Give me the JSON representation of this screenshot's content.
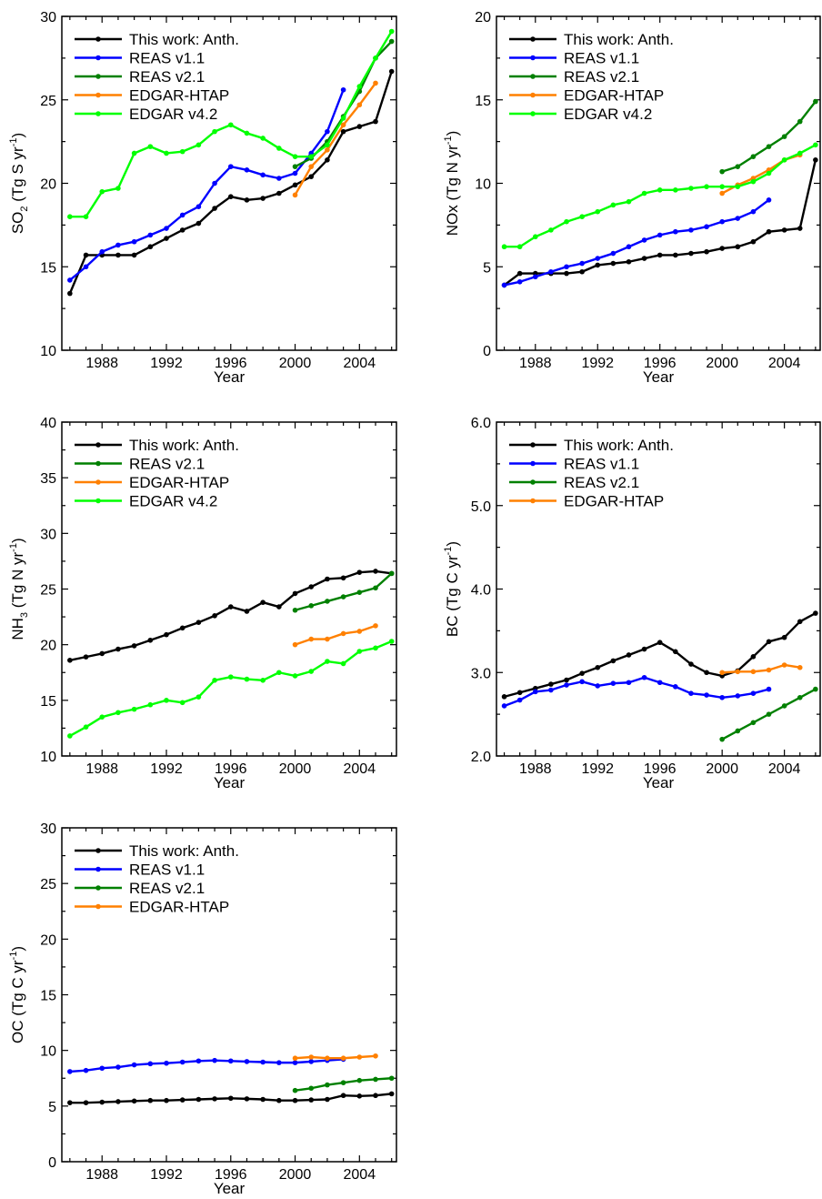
{
  "chart_data": [
    {
      "type": "line",
      "xlabel": "Year",
      "ylabel": "SO₂ (Tg S yr⁻¹)",
      "ylabel_parts": {
        "main": "SO",
        "sub": "2",
        "unit": " (Tg S yr",
        "sup": "-1",
        "close": ")"
      },
      "xlim": [
        1985.5,
        2006.3
      ],
      "ylim": [
        10,
        30
      ],
      "xticks": [
        1988,
        1992,
        1996,
        2000,
        2004
      ],
      "yticks": [
        10,
        15,
        20,
        25,
        30
      ],
      "ytick_labels": [
        "10",
        "15",
        "20",
        "25",
        "30"
      ],
      "legend_position": "top-left",
      "series": [
        {
          "name": "This work: Anth.",
          "color": "#000000",
          "x": [
            1986,
            1987,
            1988,
            1989,
            1990,
            1991,
            1992,
            1993,
            1994,
            1995,
            1996,
            1997,
            1998,
            1999,
            2000,
            2001,
            2002,
            2003,
            2004,
            2005,
            2006
          ],
          "y": [
            13.4,
            15.7,
            15.7,
            15.7,
            15.7,
            16.2,
            16.7,
            17.2,
            17.6,
            18.5,
            19.2,
            19.0,
            19.1,
            19.4,
            19.9,
            20.4,
            21.4,
            23.1,
            23.4,
            23.7,
            26.7
          ]
        },
        {
          "name": "REAS v1.1",
          "color": "#0000ff",
          "x": [
            1986,
            1987,
            1988,
            1989,
            1990,
            1991,
            1992,
            1993,
            1994,
            1995,
            1996,
            1997,
            1998,
            1999,
            2000,
            2001,
            2002,
            2003
          ],
          "y": [
            14.2,
            15.0,
            15.9,
            16.3,
            16.5,
            16.9,
            17.3,
            18.1,
            18.6,
            20.0,
            21.0,
            20.8,
            20.5,
            20.3,
            20.6,
            21.8,
            23.1,
            25.6
          ]
        },
        {
          "name": "REAS v2.1",
          "color": "#008000",
          "x": [
            2000,
            2001,
            2002,
            2003,
            2004,
            2005,
            2006
          ],
          "y": [
            21.0,
            21.5,
            22.5,
            24.0,
            25.5,
            27.5,
            28.5
          ]
        },
        {
          "name": "EDGAR-HTAP",
          "color": "#ff8000",
          "x": [
            2000,
            2001,
            2002,
            2003,
            2004,
            2005
          ],
          "y": [
            19.3,
            21.0,
            22.0,
            23.5,
            24.7,
            26.0
          ]
        },
        {
          "name": "EDGAR v4.2",
          "color": "#00ff00",
          "x": [
            1986,
            1987,
            1988,
            1989,
            1990,
            1991,
            1992,
            1993,
            1994,
            1995,
            1996,
            1997,
            1998,
            1999,
            2000,
            2001,
            2002,
            2003,
            2004,
            2005,
            2006
          ],
          "y": [
            18.0,
            18.0,
            19.5,
            19.7,
            21.8,
            22.2,
            21.8,
            21.9,
            22.3,
            23.1,
            23.5,
            23.0,
            22.7,
            22.1,
            21.6,
            21.6,
            22.3,
            23.9,
            25.8,
            27.5,
            29.1
          ]
        }
      ]
    },
    {
      "type": "line",
      "xlabel": "Year",
      "ylabel": "NOx (Tg N yr⁻¹)",
      "ylabel_parts": {
        "main": "NOx",
        "sub": "",
        "unit": " (Tg N yr",
        "sup": "-1",
        "close": ")"
      },
      "xlim": [
        1985.5,
        2006.3
      ],
      "ylim": [
        0,
        20
      ],
      "xticks": [
        1988,
        1992,
        1996,
        2000,
        2004
      ],
      "yticks": [
        0,
        5,
        10,
        15,
        20
      ],
      "ytick_labels": [
        "0",
        "5",
        "10",
        "15",
        "20"
      ],
      "legend_position": "top-left",
      "series": [
        {
          "name": "This work: Anth.",
          "color": "#000000",
          "x": [
            1986,
            1987,
            1988,
            1989,
            1990,
            1991,
            1992,
            1993,
            1994,
            1995,
            1996,
            1997,
            1998,
            1999,
            2000,
            2001,
            2002,
            2003,
            2004,
            2005,
            2006
          ],
          "y": [
            3.9,
            4.6,
            4.6,
            4.6,
            4.6,
            4.7,
            5.1,
            5.2,
            5.3,
            5.5,
            5.7,
            5.7,
            5.8,
            5.9,
            6.1,
            6.2,
            6.5,
            7.1,
            7.2,
            7.3,
            11.4
          ]
        },
        {
          "name": "REAS v1.1",
          "color": "#0000ff",
          "x": [
            1986,
            1987,
            1988,
            1989,
            1990,
            1991,
            1992,
            1993,
            1994,
            1995,
            1996,
            1997,
            1998,
            1999,
            2000,
            2001,
            2002,
            2003
          ],
          "y": [
            3.9,
            4.1,
            4.4,
            4.7,
            5.0,
            5.2,
            5.5,
            5.8,
            6.2,
            6.6,
            6.9,
            7.1,
            7.2,
            7.4,
            7.7,
            7.9,
            8.3,
            9.0
          ]
        },
        {
          "name": "REAS v2.1",
          "color": "#008000",
          "x": [
            2000,
            2001,
            2002,
            2003,
            2004,
            2005,
            2006
          ],
          "y": [
            10.7,
            11.0,
            11.6,
            12.2,
            12.8,
            13.7,
            14.9
          ]
        },
        {
          "name": "EDGAR-HTAP",
          "color": "#ff8000",
          "x": [
            2000,
            2001,
            2002,
            2003,
            2004,
            2005
          ],
          "y": [
            9.4,
            9.9,
            10.3,
            10.8,
            11.4,
            11.7
          ]
        },
        {
          "name": "EDGAR v4.2",
          "color": "#00ff00",
          "x": [
            1986,
            1987,
            1988,
            1989,
            1990,
            1991,
            1992,
            1993,
            1994,
            1995,
            1996,
            1997,
            1998,
            1999,
            2000,
            2001,
            2002,
            2003,
            2004,
            2005,
            2006
          ],
          "y": [
            6.2,
            6.2,
            6.8,
            7.2,
            7.7,
            8.0,
            8.3,
            8.7,
            8.9,
            9.4,
            9.6,
            9.6,
            9.7,
            9.8,
            9.8,
            9.8,
            10.1,
            10.6,
            11.4,
            11.8,
            12.3
          ]
        }
      ]
    },
    {
      "type": "line",
      "xlabel": "Year",
      "ylabel": "NH₃ (Tg N yr⁻¹)",
      "ylabel_parts": {
        "main": "NH",
        "sub": "3",
        "unit": " (Tg N yr",
        "sup": "-1",
        "close": ")"
      },
      "xlim": [
        1985.5,
        2006.3
      ],
      "ylim": [
        10,
        40
      ],
      "xticks": [
        1988,
        1992,
        1996,
        2000,
        2004
      ],
      "yticks": [
        10,
        15,
        20,
        25,
        30,
        35,
        40
      ],
      "ytick_labels": [
        "10",
        "15",
        "20",
        "25",
        "30",
        "35",
        "40"
      ],
      "legend_position": "top-left",
      "series": [
        {
          "name": "This work: Anth.",
          "color": "#000000",
          "x": [
            1986,
            1987,
            1988,
            1989,
            1990,
            1991,
            1992,
            1993,
            1994,
            1995,
            1996,
            1997,
            1998,
            1999,
            2000,
            2001,
            2002,
            2003,
            2004,
            2005,
            2006
          ],
          "y": [
            18.6,
            18.9,
            19.2,
            19.6,
            19.9,
            20.4,
            20.9,
            21.5,
            22.0,
            22.6,
            23.4,
            23.0,
            23.8,
            23.4,
            24.6,
            25.2,
            25.9,
            26.0,
            26.5,
            26.6,
            26.4
          ]
        },
        {
          "name": "REAS v2.1",
          "color": "#008000",
          "x": [
            2000,
            2001,
            2002,
            2003,
            2004,
            2005,
            2006
          ],
          "y": [
            23.1,
            23.5,
            23.9,
            24.3,
            24.7,
            25.1,
            26.4
          ]
        },
        {
          "name": "EDGAR-HTAP",
          "color": "#ff8000",
          "x": [
            2000,
            2001,
            2002,
            2003,
            2004,
            2005
          ],
          "y": [
            20.0,
            20.5,
            20.5,
            21.0,
            21.2,
            21.7
          ]
        },
        {
          "name": "EDGAR v4.2",
          "color": "#00ff00",
          "x": [
            1986,
            1987,
            1988,
            1989,
            1990,
            1991,
            1992,
            1993,
            1994,
            1995,
            1996,
            1997,
            1998,
            1999,
            2000,
            2001,
            2002,
            2003,
            2004,
            2005,
            2006
          ],
          "y": [
            11.8,
            12.6,
            13.5,
            13.9,
            14.2,
            14.6,
            15.0,
            14.8,
            15.3,
            16.8,
            17.1,
            16.9,
            16.8,
            17.5,
            17.2,
            17.6,
            18.5,
            18.3,
            19.4,
            19.7,
            20.3
          ]
        }
      ]
    },
    {
      "type": "line",
      "xlabel": "Year",
      "ylabel": "BC (Tg C yr⁻¹)",
      "ylabel_parts": {
        "main": "BC",
        "sub": "",
        "unit": " (Tg C yr",
        "sup": "-1",
        "close": ")"
      },
      "xlim": [
        1985.5,
        2006.3
      ],
      "ylim": [
        2.0,
        6.0
      ],
      "xticks": [
        1988,
        1992,
        1996,
        2000,
        2004
      ],
      "yticks": [
        2.0,
        3.0,
        4.0,
        5.0,
        6.0
      ],
      "ytick_labels": [
        "2.0",
        "3.0",
        "4.0",
        "5.0",
        "6.0"
      ],
      "legend_position": "top-left",
      "series": [
        {
          "name": "This work: Anth.",
          "color": "#000000",
          "x": [
            1986,
            1987,
            1988,
            1989,
            1990,
            1991,
            1992,
            1993,
            1994,
            1995,
            1996,
            1997,
            1998,
            1999,
            2000,
            2001,
            2002,
            2003,
            2004,
            2005,
            2006
          ],
          "y": [
            2.71,
            2.76,
            2.81,
            2.86,
            2.91,
            2.99,
            3.06,
            3.14,
            3.21,
            3.28,
            3.36,
            3.25,
            3.1,
            3.0,
            2.96,
            3.02,
            3.19,
            3.37,
            3.42,
            3.61,
            3.71
          ]
        },
        {
          "name": "REAS v1.1",
          "color": "#0000ff",
          "x": [
            1986,
            1987,
            1988,
            1989,
            1990,
            1991,
            1992,
            1993,
            1994,
            1995,
            1996,
            1997,
            1998,
            1999,
            2000,
            2001,
            2002,
            2003
          ],
          "y": [
            2.6,
            2.67,
            2.77,
            2.79,
            2.85,
            2.89,
            2.84,
            2.87,
            2.88,
            2.94,
            2.88,
            2.83,
            2.75,
            2.73,
            2.7,
            2.72,
            2.75,
            2.8
          ]
        },
        {
          "name": "REAS v2.1",
          "color": "#008000",
          "x": [
            2000,
            2001,
            2002,
            2003,
            2004,
            2005,
            2006
          ],
          "y": [
            2.2,
            2.3,
            2.4,
            2.5,
            2.6,
            2.7,
            2.8
          ]
        },
        {
          "name": "EDGAR-HTAP",
          "color": "#ff8000",
          "x": [
            2000,
            2001,
            2002,
            2003,
            2004,
            2005
          ],
          "y": [
            3.0,
            3.01,
            3.01,
            3.03,
            3.09,
            3.06
          ]
        }
      ]
    },
    {
      "type": "line",
      "xlabel": "Year",
      "ylabel": "OC (Tg C yr⁻¹)",
      "ylabel_parts": {
        "main": "OC",
        "sub": "",
        "unit": " (Tg C yr",
        "sup": "-1",
        "close": ")"
      },
      "xlim": [
        1985.5,
        2006.3
      ],
      "ylim": [
        0,
        30
      ],
      "xticks": [
        1988,
        1992,
        1996,
        2000,
        2004
      ],
      "yticks": [
        0,
        5,
        10,
        15,
        20,
        25,
        30
      ],
      "ytick_labels": [
        "0",
        "5",
        "10",
        "15",
        "20",
        "25",
        "30"
      ],
      "legend_position": "top-left",
      "series": [
        {
          "name": "This work: Anth.",
          "color": "#000000",
          "x": [
            1986,
            1987,
            1988,
            1989,
            1990,
            1991,
            1992,
            1993,
            1994,
            1995,
            1996,
            1997,
            1998,
            1999,
            2000,
            2001,
            2002,
            2003,
            2004,
            2005,
            2006
          ],
          "y": [
            5.3,
            5.3,
            5.35,
            5.4,
            5.45,
            5.5,
            5.5,
            5.55,
            5.6,
            5.65,
            5.7,
            5.65,
            5.6,
            5.5,
            5.5,
            5.55,
            5.6,
            5.95,
            5.9,
            5.95,
            6.1
          ]
        },
        {
          "name": "REAS v1.1",
          "color": "#0000ff",
          "x": [
            1986,
            1987,
            1988,
            1989,
            1990,
            1991,
            1992,
            1993,
            1994,
            1995,
            1996,
            1997,
            1998,
            1999,
            2000,
            2001,
            2002,
            2003
          ],
          "y": [
            8.1,
            8.2,
            8.4,
            8.5,
            8.7,
            8.8,
            8.85,
            8.95,
            9.05,
            9.1,
            9.05,
            9.0,
            8.95,
            8.9,
            8.9,
            9.0,
            9.1,
            9.2
          ]
        },
        {
          "name": "REAS v2.1",
          "color": "#008000",
          "x": [
            2000,
            2001,
            2002,
            2003,
            2004,
            2005,
            2006
          ],
          "y": [
            6.4,
            6.6,
            6.9,
            7.1,
            7.3,
            7.4,
            7.5
          ]
        },
        {
          "name": "EDGAR-HTAP",
          "color": "#ff8000",
          "x": [
            2000,
            2001,
            2002,
            2003,
            2004,
            2005
          ],
          "y": [
            9.3,
            9.4,
            9.3,
            9.3,
            9.4,
            9.5
          ]
        }
      ]
    }
  ]
}
